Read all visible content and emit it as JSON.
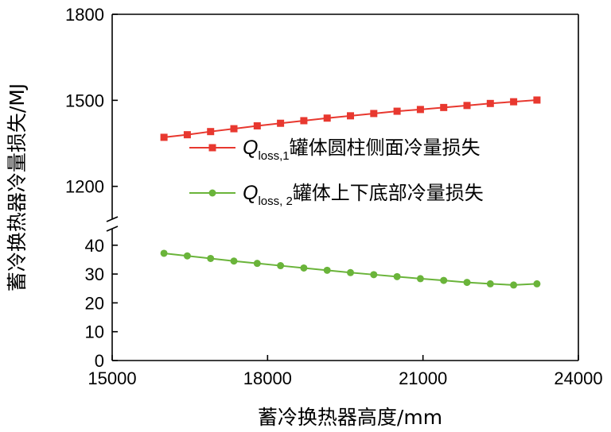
{
  "chart_data": {
    "type": "line",
    "xlabel": "蓄冷换热器高度/mm",
    "ylabel": "蓄冷换热器冷量损失/MJ",
    "xlim": [
      15000,
      24000
    ],
    "x_ticks": [
      "15000",
      "18000",
      "21000",
      "24000"
    ],
    "y_broken": true,
    "y_upper_lim": [
      1080,
      1800
    ],
    "y_upper_ticks": [
      "1200",
      "1500",
      "1800"
    ],
    "y_lower_lim": [
      0,
      46
    ],
    "y_lower_ticks": [
      "0",
      "10",
      "20",
      "30",
      "40"
    ],
    "grid": false,
    "legend_position": "middle",
    "x": [
      16000,
      16450,
      16900,
      17350,
      17800,
      18250,
      18700,
      19150,
      19600,
      20050,
      20500,
      20950,
      21400,
      21850,
      22300,
      22750,
      23200
    ],
    "series": [
      {
        "name_main": "Q",
        "name_sub": "loss,1",
        "name_rest": "罐体圆柱侧面冷量损失",
        "color": "#e8382f",
        "marker": "square",
        "values": [
          1371,
          1380,
          1391,
          1401,
          1411,
          1420,
          1429,
          1438,
          1446,
          1454,
          1462,
          1468,
          1475,
          1482,
          1489,
          1495,
          1501
        ]
      },
      {
        "name_main": "Q",
        "name_sub": "loss, 2",
        "name_rest": "罐体上下底部冷量损失",
        "color": "#6ab43a",
        "marker": "circle",
        "values": [
          37.2,
          36.3,
          35.4,
          34.5,
          33.7,
          32.9,
          32.1,
          31.3,
          30.5,
          29.8,
          29.1,
          28.4,
          27.8,
          27.1,
          26.6,
          26.2,
          26.6
        ]
      }
    ]
  }
}
